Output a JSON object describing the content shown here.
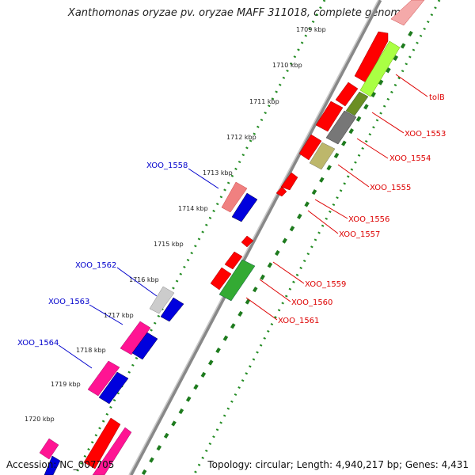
{
  "title": "Xanthomonas oryzae pv. oryzae MAFF 311018, complete genome",
  "accession": "Accession: NC_007705",
  "topology": "Topology: circular; Length: 4,940,217 bp; Genes: 4,431",
  "colors": {
    "reverse_label": "#dd0000",
    "forward_label": "#0000cc",
    "axis": "#777777",
    "dotted": "#228b22"
  },
  "ticks": [
    "1709 kbp",
    "1710 kbp",
    "1711 kbp",
    "1712 kbp",
    "1713 kbp",
    "1714 kbp",
    "1715 kbp",
    "1716 kbp",
    "1717 kbp",
    "1718 kbp",
    "1719 kbp",
    "1720 kbp"
  ],
  "genes_left": [
    "XOO_1558",
    "XOO_1562",
    "XOO_1563",
    "XOO_1564"
  ],
  "genes_right": [
    "tolB",
    "XOO_1553",
    "XOO_1554",
    "XOO_1555",
    "XOO_1556",
    "XOO_1557",
    "XOO_1559",
    "XOO_1560",
    "XOO_1561"
  ]
}
